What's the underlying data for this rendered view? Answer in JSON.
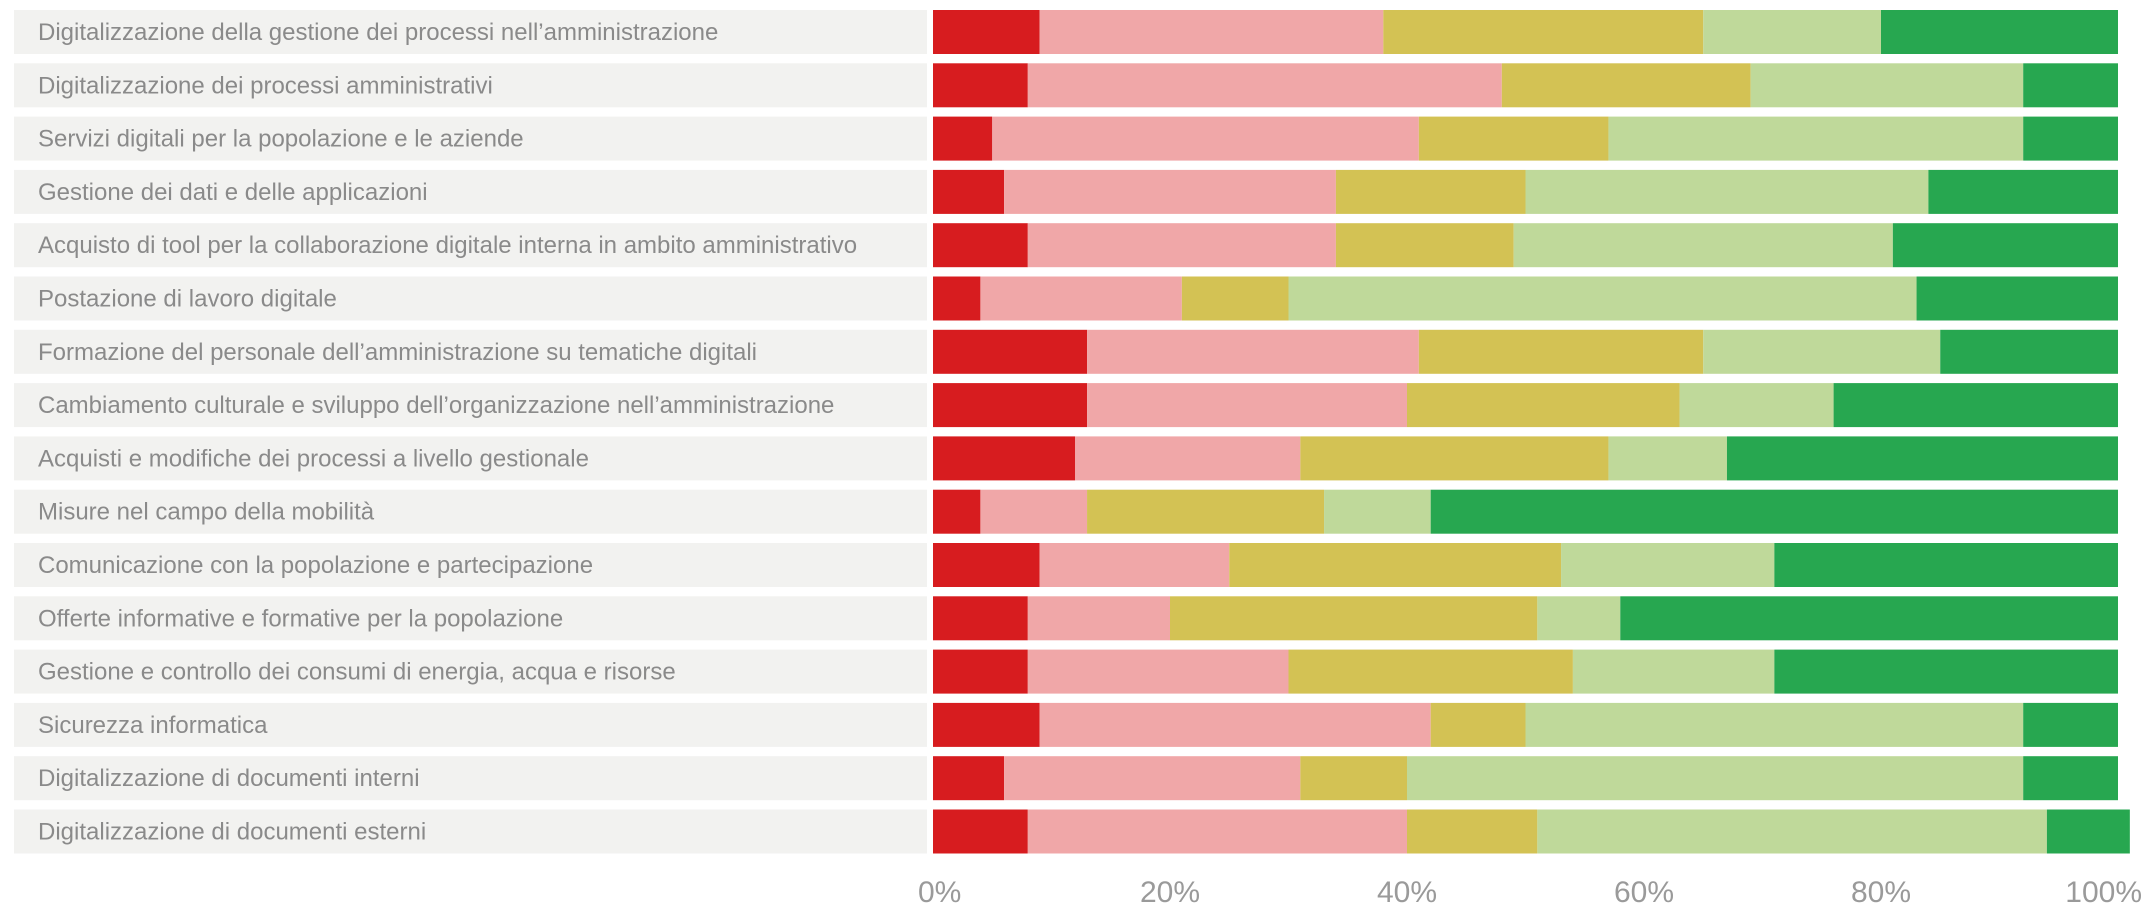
{
  "chart_data": {
    "type": "bar",
    "orientation": "horizontal",
    "stacked": true,
    "normalized": true,
    "xlim": [
      0,
      100
    ],
    "xticks": [
      "0%",
      "20%",
      "40%",
      "60%",
      "80%",
      "100%"
    ],
    "grid": false,
    "legend": "none",
    "colors": [
      "#d71c1f",
      "#f0a7a8",
      "#d3c254",
      "#bfd99a",
      "#27a750"
    ],
    "categories": [
      "Digitalizzazione della gestione dei processi nell’amministrazione",
      "Digitalizzazione dei processi amministrativi",
      "Servizi digitali per la popolazione e le aziende",
      "Gestione dei dati e delle applicazioni",
      "Acquisto di tool per la collaborazione digitale interna in ambito amministrativo",
      "Postazione di lavoro digitale",
      "Formazione del personale dell’amministrazione su tematiche digitali",
      "Cambiamento culturale e sviluppo dell’organizzazione nell’amministrazione",
      "Acquisti e modifiche dei processi a livello gestionale",
      "Misure nel campo della mobilità",
      "Comunicazione con la popolazione e partecipazione",
      "Offerte informative e formative per la popolazione",
      "Gestione e controllo dei consumi di energia, acqua e risorse",
      "Sicurezza informatica",
      "Digitalizzazione di documenti interni",
      "Digitalizzazione di documenti esterni"
    ],
    "series": [
      {
        "values": [
          9,
          8,
          5,
          6,
          8,
          4,
          13,
          13,
          12,
          4,
          9,
          8,
          8,
          9,
          6,
          8
        ]
      },
      {
        "values": [
          29,
          40,
          36,
          28,
          26,
          17,
          28,
          27,
          19,
          9,
          16,
          12,
          22,
          33,
          25,
          32
        ]
      },
      {
        "values": [
          27,
          21,
          16,
          16,
          15,
          9,
          24,
          23,
          26,
          20,
          28,
          31,
          24,
          8,
          9,
          11
        ]
      },
      {
        "values": [
          15,
          23,
          35,
          34,
          32,
          53,
          20,
          13,
          10,
          9,
          18,
          7,
          17,
          42,
          52,
          43
        ]
      },
      {
        "values": [
          20,
          8,
          8,
          16,
          19,
          17,
          15,
          24,
          33,
          58,
          29,
          42,
          29,
          8,
          8,
          7
        ]
      }
    ]
  }
}
